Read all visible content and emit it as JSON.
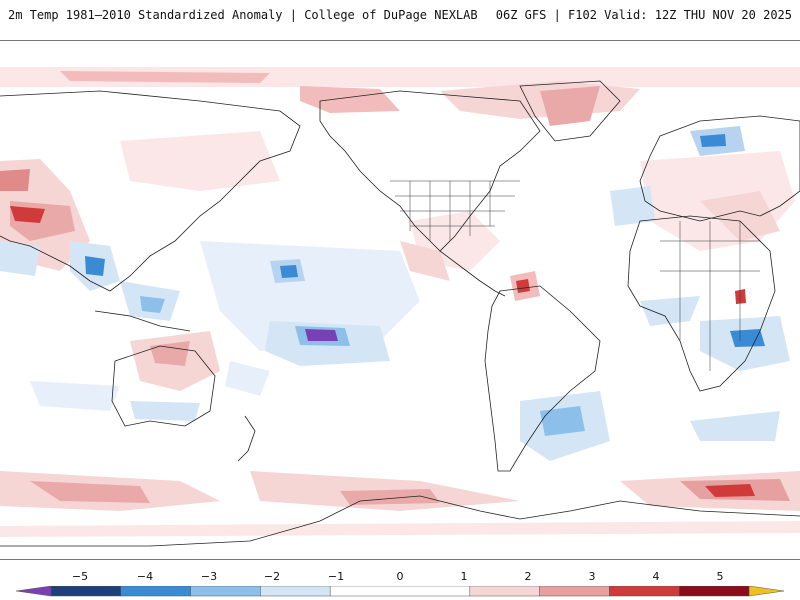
{
  "header": {
    "title_left": "2m Temp 1981–2010 Standardized Anomaly | College of DuPage NEXLAB",
    "title_right": "06Z GFS | F102 Valid: 12Z THU NOV 20 2025"
  },
  "colorbar": {
    "tick_labels": [
      "−5",
      "−4",
      "−3",
      "−2",
      "−1",
      "0",
      "1",
      "2",
      "3",
      "4",
      "5"
    ],
    "tick_values": [
      -5,
      -4,
      -3,
      -2,
      -1,
      0,
      1,
      2,
      3,
      4,
      5
    ],
    "range": [
      -5.5,
      5.5
    ],
    "colors": {
      "lt_m5": "#7b3fb5",
      "m5_m4": "#1f3f7a",
      "m4_m3": "#3a8ad6",
      "m3_m2": "#8cc0ea",
      "m2_m1": "#d4e5f5",
      "m1_p1": "#ffffff",
      "p1_p2": "#f6d5d5",
      "p2_p3": "#e6a0a0",
      "p3_p4": "#d13a3a",
      "p4_p5": "#8f0a1a",
      "gt_p5": "#f0c020"
    }
  }
}
